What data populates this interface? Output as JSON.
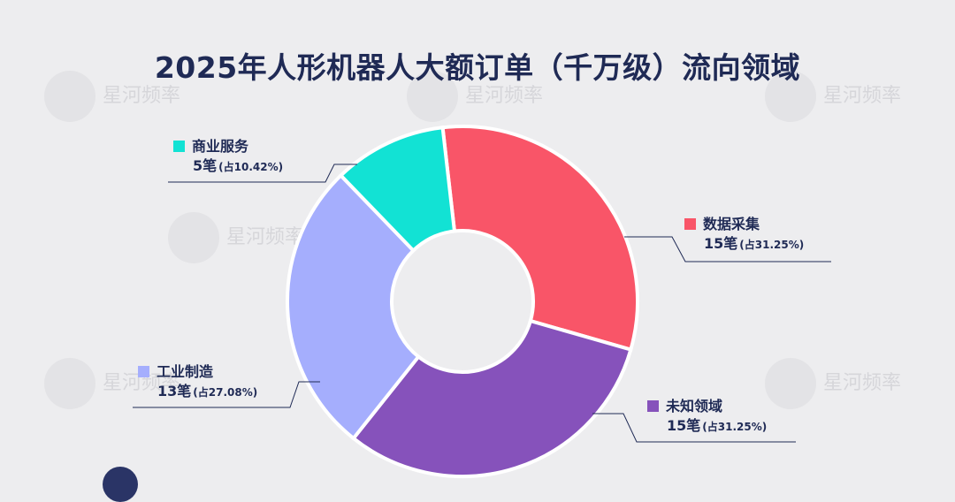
{
  "title": "2025年人形机器人大额订单（千万级）流向领域",
  "watermark": "星河频率",
  "chart_data": {
    "type": "pie",
    "donut": true,
    "slices": [
      {
        "label": "数据采集",
        "count": 15,
        "count_text": "15笔",
        "percent": 31.25,
        "percent_text": "(占31.25%)",
        "color": "#f95568"
      },
      {
        "label": "未知领域",
        "count": 15,
        "count_text": "15笔",
        "percent": 31.25,
        "percent_text": "(占31.25%)",
        "color": "#8652bb"
      },
      {
        "label": "工业制造",
        "count": 13,
        "count_text": "13笔",
        "percent": 27.08,
        "percent_text": "(占27.08%)",
        "color": "#a5aefd"
      },
      {
        "label": "商业服务",
        "count": 5,
        "count_text": "5笔",
        "percent": 10.42,
        "percent_text": "(占10.42%)",
        "color": "#12e2d4"
      }
    ]
  }
}
